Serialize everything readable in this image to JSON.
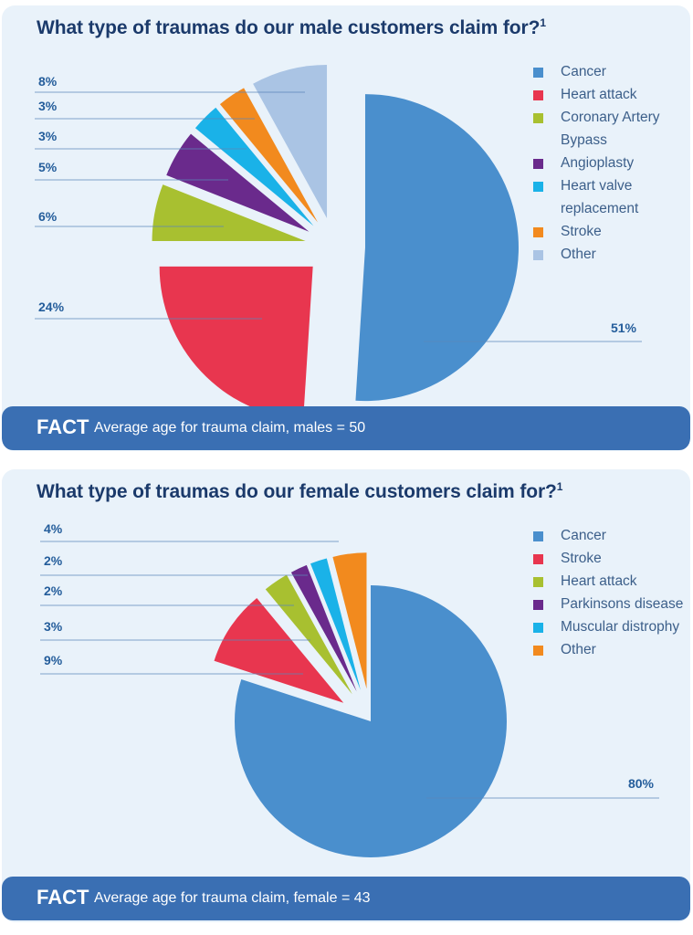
{
  "male": {
    "title": "What type of traumas do our male customers claim for?",
    "footnote_mark": "1",
    "fact_word": "FACT",
    "fact_text": "Average age for trauma claim, males = 50",
    "chart_data": {
      "type": "pie",
      "slices": [
        {
          "name": "Cancer",
          "value": 51,
          "label": "51%",
          "color": "#4a8fcd"
        },
        {
          "name": "Heart attack",
          "value": 24,
          "label": "24%",
          "color": "#e8364f"
        },
        {
          "name": "Coronary Artery Bypass",
          "value": 6,
          "label": "6%",
          "color": "#a8c030"
        },
        {
          "name": "Angioplasty",
          "value": 5,
          "label": "5%",
          "color": "#6a2a8c"
        },
        {
          "name": "Heart valve replacement",
          "value": 3,
          "label": "3%",
          "color": "#1ab2e8"
        },
        {
          "name": "Stroke",
          "value": 3,
          "label": "3%",
          "color": "#f28a1e"
        },
        {
          "name": "Other",
          "value": 8,
          "label": "8%",
          "color": "#aac4e4"
        }
      ],
      "legend": [
        "Cancer",
        "Heart attack",
        "Coronary Artery Bypass",
        "Angioplasty",
        "Heart valve replacement",
        "Stroke",
        "Other"
      ],
      "legend_position": "right"
    }
  },
  "female": {
    "title": "What type of traumas do our female customers claim for?",
    "footnote_mark": "1",
    "fact_word": "FACT",
    "fact_text": "Average age for trauma claim, female = 43",
    "chart_data": {
      "type": "pie",
      "slices": [
        {
          "name": "Cancer",
          "value": 80,
          "label": "80%",
          "color": "#4a8fcd"
        },
        {
          "name": "Stroke",
          "value": 9,
          "label": "9%",
          "color": "#e8364f"
        },
        {
          "name": "Heart attack",
          "value": 3,
          "label": "3%",
          "color": "#a8c030"
        },
        {
          "name": "Parkinsons disease",
          "value": 2,
          "label": "2%",
          "color": "#6a2a8c"
        },
        {
          "name": "Muscular distrophy",
          "value": 2,
          "label": "2%",
          "color": "#1ab2e8"
        },
        {
          "name": "Other",
          "value": 4,
          "label": "4%",
          "color": "#f28a1e"
        }
      ],
      "legend": [
        "Cancer",
        "Stroke",
        "Heart attack",
        "Parkinsons disease",
        "Muscular distrophy",
        "Other"
      ],
      "legend_position": "right"
    }
  }
}
